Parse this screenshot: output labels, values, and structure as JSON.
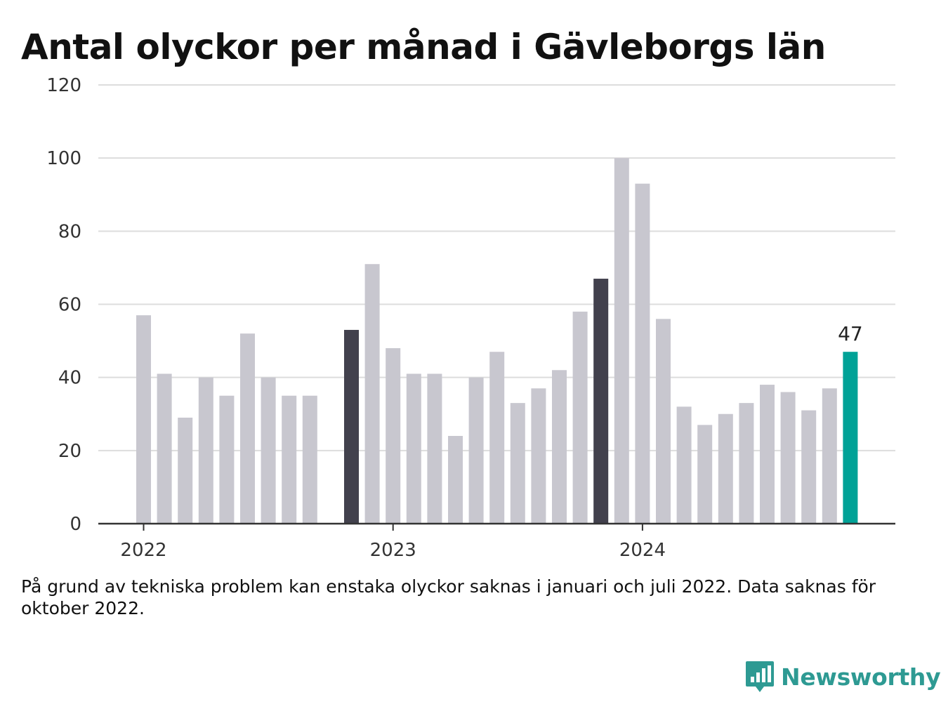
{
  "title": "Antal olyckor per månad i Gävleborgs län",
  "footnote": "På grund av tekniska problem kan enstaka olyckor saknas i januari och juli 2022. Data saknas för oktober 2022.",
  "brand": {
    "name": "Newsworthy",
    "icon": "newsworthy-logo-icon",
    "color": "#2e9a93"
  },
  "colors": {
    "default": "#c8c7cf",
    "november": "#42414d",
    "latest": "#00a297",
    "grid": "#dddddd",
    "axis": "#333333"
  },
  "chart_data": {
    "type": "bar",
    "title": "Antal olyckor per månad i Gävleborgs län",
    "ylim": [
      0,
      120
    ],
    "yticks": [
      0,
      20,
      40,
      60,
      80,
      100,
      120
    ],
    "grid": true,
    "xtick_labels": [
      {
        "label": "2022",
        "month": "2022-01"
      },
      {
        "label": "2023",
        "month": "2023-01"
      },
      {
        "label": "2024",
        "month": "2024-01"
      }
    ],
    "months": [
      "2022-01",
      "2022-02",
      "2022-03",
      "2022-04",
      "2022-05",
      "2022-06",
      "2022-07",
      "2022-08",
      "2022-09",
      "2022-10",
      "2022-11",
      "2022-12",
      "2023-01",
      "2023-02",
      "2023-03",
      "2023-04",
      "2023-05",
      "2023-06",
      "2023-07",
      "2023-08",
      "2023-09",
      "2023-10",
      "2023-11",
      "2023-12",
      "2024-01",
      "2024-02",
      "2024-03",
      "2024-04",
      "2024-05",
      "2024-06",
      "2024-07",
      "2024-08",
      "2024-09",
      "2024-10",
      "2024-11"
    ],
    "values": [
      57,
      41,
      29,
      40,
      35,
      52,
      40,
      35,
      35,
      null,
      53,
      71,
      48,
      41,
      41,
      24,
      40,
      47,
      33,
      37,
      42,
      58,
      67,
      100,
      93,
      56,
      32,
      27,
      30,
      33,
      38,
      36,
      31,
      37,
      47
    ],
    "highlight": {
      "2022-11": "november",
      "2023-11": "november",
      "2024-11": "latest"
    },
    "annotations": [
      {
        "month": "2024-11",
        "text": "47"
      }
    ]
  }
}
